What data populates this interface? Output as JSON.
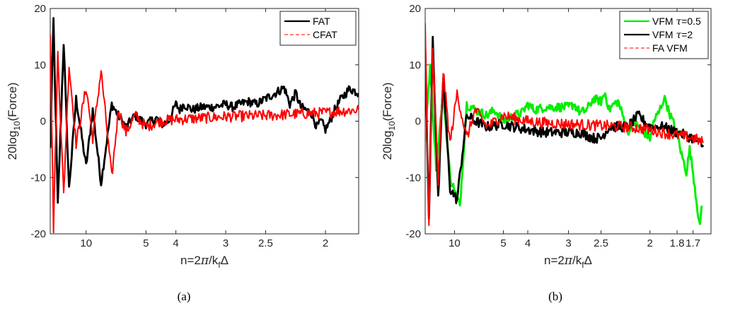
{
  "figure": {
    "panels_count": 2
  },
  "chart_data": [
    {
      "id": "a",
      "type": "line",
      "caption": "(a)",
      "xlabel_parts": {
        "pre": "n=2",
        "pi": "π",
        "mid": "/k",
        "sub": "f",
        "post": "Δ"
      },
      "ylabel_parts": {
        "pre": "20log",
        "sub": "10",
        "post": "(Force)"
      },
      "x_scale": "reciprocal",
      "xlim_n": [
        25,
        1.8
      ],
      "ylim": [
        -20,
        20
      ],
      "yticks": [
        "20",
        "10",
        "0",
        "-10",
        "-20"
      ],
      "xticks": [
        {
          "n": 10,
          "label": "10"
        },
        {
          "n": 5,
          "label": "5"
        },
        {
          "n": 4,
          "label": "4"
        },
        {
          "n": 3,
          "label": "3"
        },
        {
          "n": 2.5,
          "label": "2.5"
        },
        {
          "n": 2,
          "label": "2"
        }
      ],
      "legend": {
        "placement": "top-right",
        "entries": [
          {
            "label": "FAT",
            "color": "#000000",
            "dash": "solid"
          },
          {
            "label": "CFAT",
            "color": "#ff0000",
            "dash": "dashed"
          }
        ]
      },
      "series": [
        {
          "name": "FAT",
          "color": "#000000",
          "width": 2.8,
          "noise": 0.8,
          "points": [
            [
              25,
              -5
            ],
            [
              22,
              18
            ],
            [
              19,
              -15
            ],
            [
              16,
              14
            ],
            [
              14,
              -12
            ],
            [
              12,
              4
            ],
            [
              10,
              -8
            ],
            [
              9,
              2
            ],
            [
              8,
              -11
            ],
            [
              7,
              3
            ],
            [
              6.5,
              1
            ],
            [
              6,
              -1
            ],
            [
              5.5,
              1
            ],
            [
              5,
              -0.5
            ],
            [
              4.6,
              0.5
            ],
            [
              4.4,
              -0.5
            ],
            [
              4.2,
              0
            ],
            [
              4.0,
              3
            ],
            [
              3.9,
              2
            ],
            [
              3.8,
              3
            ],
            [
              3.6,
              2
            ],
            [
              3.4,
              2.5
            ],
            [
              3.2,
              2.5
            ],
            [
              3.0,
              3
            ],
            [
              2.9,
              2.5
            ],
            [
              2.8,
              3
            ],
            [
              2.7,
              3.5
            ],
            [
              2.6,
              3
            ],
            [
              2.5,
              4
            ],
            [
              2.4,
              5
            ],
            [
              2.32,
              6
            ],
            [
              2.27,
              3
            ],
            [
              2.22,
              5
            ],
            [
              2.18,
              2.5
            ],
            [
              2.1,
              1.5
            ],
            [
              2.06,
              -1
            ],
            [
              2.03,
              0
            ],
            [
              2.0,
              -1.5
            ],
            [
              1.97,
              0
            ],
            [
              1.94,
              2
            ],
            [
              1.9,
              4
            ],
            [
              1.85,
              5.8
            ],
            [
              1.8,
              5
            ]
          ]
        },
        {
          "name": "CFAT",
          "color": "#ff0000",
          "width": 2.0,
          "noise": 1.0,
          "points": [
            [
              25,
              16
            ],
            [
              22,
              -19
            ],
            [
              19,
              12
            ],
            [
              16,
              -13
            ],
            [
              14,
              10
            ],
            [
              12,
              -4
            ],
            [
              10,
              6
            ],
            [
              9,
              -3
            ],
            [
              8,
              9
            ],
            [
              7,
              -10
            ],
            [
              6.5,
              2
            ],
            [
              6,
              -2
            ],
            [
              5.5,
              1
            ],
            [
              5,
              -1
            ],
            [
              4.5,
              0
            ],
            [
              4.0,
              0.3
            ],
            [
              3.5,
              0.5
            ],
            [
              3.0,
              0.8
            ],
            [
              2.5,
              1
            ],
            [
              2.2,
              1.3
            ],
            [
              2.0,
              1.5
            ],
            [
              1.9,
              1.8
            ],
            [
              1.8,
              2
            ]
          ]
        }
      ]
    },
    {
      "id": "b",
      "type": "line",
      "caption": "(b)",
      "xlabel_parts": {
        "pre": "n=2",
        "pi": "π",
        "mid": "/k",
        "sub": "f",
        "post": "Δ"
      },
      "ylabel_parts": {
        "pre": "20log",
        "sub": "10",
        "post": "(Force)"
      },
      "x_scale": "reciprocal",
      "xlim_n": [
        25,
        1.6
      ],
      "ylim": [
        -20,
        20
      ],
      "yticks": [
        "20",
        "10",
        "0",
        "-10",
        "-20"
      ],
      "xticks": [
        {
          "n": 10,
          "label": "10"
        },
        {
          "n": 5,
          "label": "5"
        },
        {
          "n": 4,
          "label": "4"
        },
        {
          "n": 3,
          "label": "3"
        },
        {
          "n": 2.5,
          "label": "2.5"
        },
        {
          "n": 2,
          "label": "2"
        },
        {
          "n": 1.8,
          "label": "1.8"
        },
        {
          "n": 1.7,
          "label": "1.7"
        }
      ],
      "legend": {
        "placement": "top-right",
        "entries": [
          {
            "label_pre": "VFM ",
            "label_tau": "τ",
            "label_post": "=0.5",
            "color": "#00ee00",
            "dash": "solid"
          },
          {
            "label_pre": "VFM ",
            "label_tau": "τ",
            "label_post": "=2",
            "color": "#000000",
            "dash": "solid"
          },
          {
            "label_pre": "FA VFM",
            "label_tau": "",
            "label_post": "",
            "color": "#ff0000",
            "dash": "dashed"
          }
        ]
      },
      "series": [
        {
          "name": "VFM τ=0.5",
          "color": "#00ee00",
          "width": 3.0,
          "noise": 0.8,
          "points": [
            [
              25,
              -3
            ],
            [
              20,
              10
            ],
            [
              16,
              -8
            ],
            [
              13,
              5
            ],
            [
              11,
              -10
            ],
            [
              9,
              -15
            ],
            [
              8,
              3
            ],
            [
              7,
              2
            ],
            [
              6,
              1
            ],
            [
              5.5,
              2
            ],
            [
              5,
              0
            ],
            [
              4.5,
              1
            ],
            [
              4.2,
              1.5
            ],
            [
              4.0,
              3
            ],
            [
              3.8,
              2
            ],
            [
              3.5,
              2.5
            ],
            [
              3.2,
              2.5
            ],
            [
              3.0,
              2.5
            ],
            [
              2.9,
              3
            ],
            [
              2.8,
              1.5
            ],
            [
              2.7,
              2
            ],
            [
              2.6,
              4
            ],
            [
              2.5,
              3.5
            ],
            [
              2.45,
              5
            ],
            [
              2.4,
              2
            ],
            [
              2.35,
              3
            ],
            [
              2.3,
              3.5
            ],
            [
              2.25,
              1
            ],
            [
              2.2,
              -2
            ],
            [
              2.15,
              0
            ],
            [
              2.1,
              -1
            ],
            [
              2.05,
              -2
            ],
            [
              2.0,
              -3
            ],
            [
              1.97,
              0
            ],
            [
              1.93,
              1.5
            ],
            [
              1.9,
              3.5
            ],
            [
              1.88,
              4
            ],
            [
              1.86,
              2
            ],
            [
              1.83,
              0
            ],
            [
              1.8,
              -2
            ],
            [
              1.77,
              -6
            ],
            [
              1.74,
              -9
            ],
            [
              1.72,
              -5
            ],
            [
              1.7,
              -9
            ],
            [
              1.68,
              -14
            ],
            [
              1.66,
              -19
            ],
            [
              1.65,
              -15
            ]
          ]
        },
        {
          "name": "VFM τ=2",
          "color": "#000000",
          "width": 2.8,
          "noise": 0.9,
          "points": [
            [
              25,
              14
            ],
            [
              21,
              -18
            ],
            [
              18,
              15
            ],
            [
              15,
              -14
            ],
            [
              13,
              8
            ],
            [
              11,
              -12
            ],
            [
              9.5,
              -14
            ],
            [
              8,
              1
            ],
            [
              7,
              0
            ],
            [
              6,
              -1
            ],
            [
              5,
              -0.5
            ],
            [
              4.5,
              -1
            ],
            [
              4.0,
              -1.5
            ],
            [
              3.5,
              -2
            ],
            [
              3.0,
              -2
            ],
            [
              2.8,
              -2
            ],
            [
              2.6,
              -3
            ],
            [
              2.5,
              -3
            ],
            [
              2.4,
              -1
            ],
            [
              2.3,
              -1
            ],
            [
              2.2,
              -1
            ],
            [
              2.15,
              0
            ],
            [
              2.1,
              1
            ],
            [
              2.05,
              0
            ],
            [
              2.0,
              -1
            ],
            [
              1.95,
              -1
            ],
            [
              1.9,
              -1
            ],
            [
              1.85,
              -1.5
            ],
            [
              1.8,
              -2
            ],
            [
              1.75,
              -2.5
            ],
            [
              1.7,
              -3
            ],
            [
              1.66,
              -4
            ],
            [
              1.64,
              -4.5
            ]
          ]
        },
        {
          "name": "FA VFM",
          "color": "#ff0000",
          "width": 2.0,
          "noise": 1.0,
          "points": [
            [
              25,
              17
            ],
            [
              21,
              -19
            ],
            [
              18,
              13
            ],
            [
              15,
              -11
            ],
            [
              13,
              9
            ],
            [
              11,
              -4
            ],
            [
              9.5,
              5
            ],
            [
              8,
              -3
            ],
            [
              7,
              2
            ],
            [
              6,
              -1
            ],
            [
              5,
              1
            ],
            [
              4.5,
              0.5
            ],
            [
              4.0,
              0
            ],
            [
              3.5,
              -0.3
            ],
            [
              3.0,
              -0.5
            ],
            [
              2.5,
              -0.8
            ],
            [
              2.2,
              -1
            ],
            [
              2.0,
              -1.5
            ],
            [
              1.9,
              -2
            ],
            [
              1.8,
              -2.5
            ],
            [
              1.7,
              -3
            ],
            [
              1.66,
              -3.5
            ],
            [
              1.64,
              -3.8
            ]
          ]
        }
      ]
    }
  ]
}
